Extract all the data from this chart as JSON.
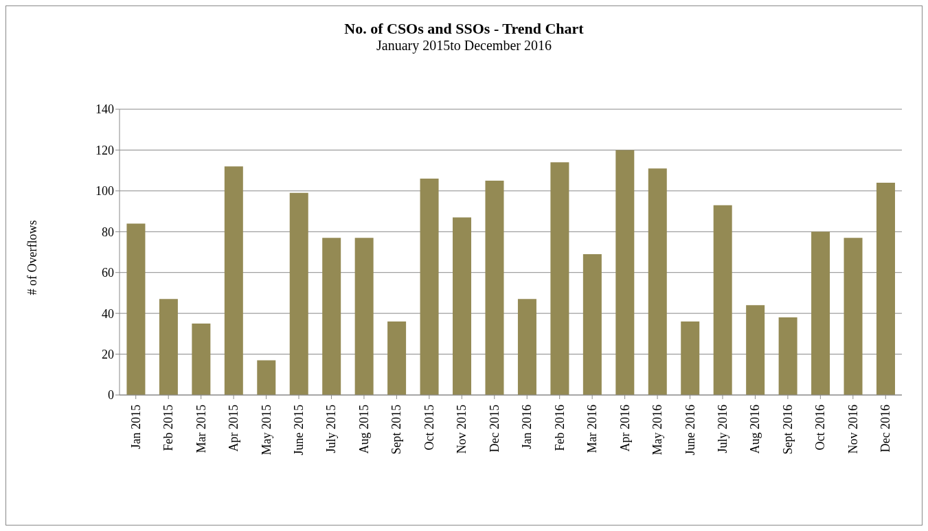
{
  "chart_data": {
    "type": "bar",
    "title": "No. of CSOs and SSOs - Trend Chart",
    "subtitle": "January 2015to December 2016",
    "ylabel": "# of Overflows",
    "categories": [
      "Jan 2015",
      "Feb 2015",
      "Mar 2015",
      "Apr 2015",
      "May 2015",
      "June 2015",
      "July 2015",
      "Aug 2015",
      "Sept 2015",
      "Oct 2015",
      "Nov 2015",
      "Dec 2015",
      "Jan 2016",
      "Feb 2016",
      "Mar 2016",
      "Apr 2016",
      "May 2016",
      "June 2016",
      "July 2016",
      "Aug 2016",
      "Sept 2016",
      "Oct 2016",
      "Nov 2016",
      "Dec 2016"
    ],
    "values": [
      84,
      47,
      35,
      112,
      17,
      99,
      77,
      77,
      36,
      106,
      87,
      105,
      47,
      114,
      69,
      120,
      111,
      36,
      93,
      44,
      38,
      80,
      77,
      104
    ],
    "color": "#948a54",
    "ylim": [
      0,
      140
    ],
    "yticks": [
      0,
      20,
      40,
      60,
      80,
      100,
      120,
      140
    ],
    "grid": "y"
  }
}
